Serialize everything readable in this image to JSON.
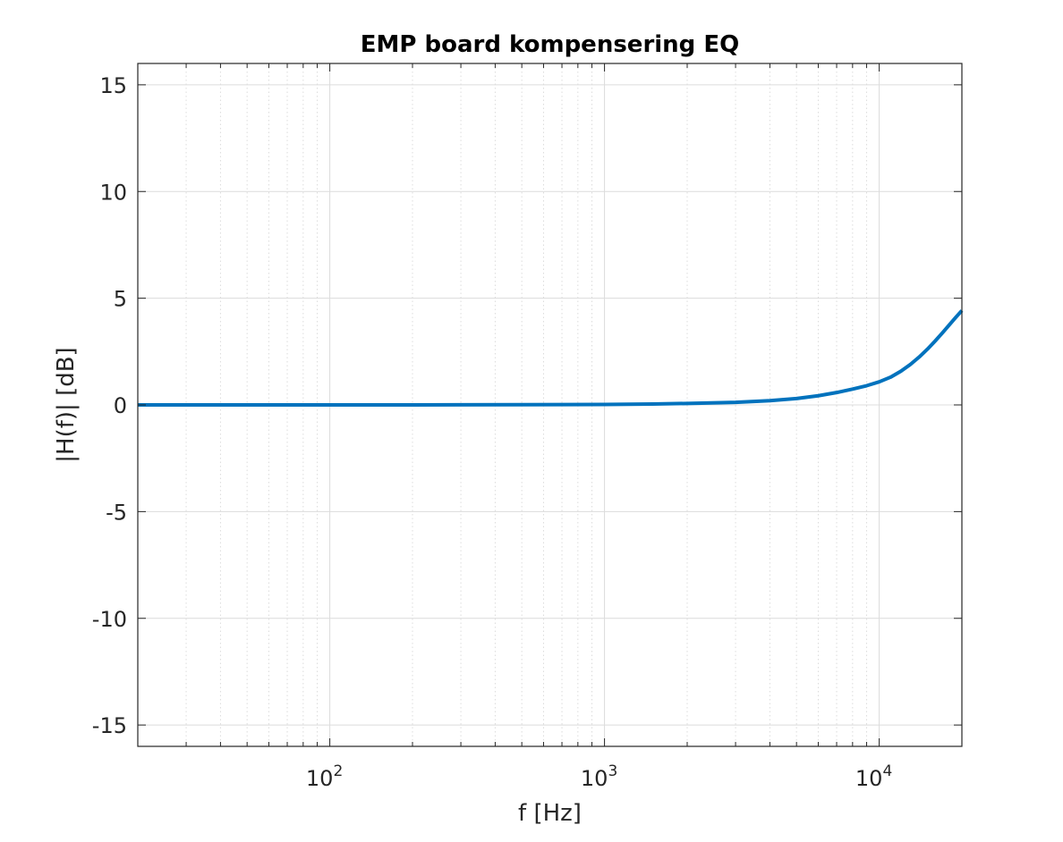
{
  "chart_data": {
    "type": "line",
    "title": "EMP board kompensering EQ",
    "xlabel": "f [Hz]",
    "ylabel": "|H(f)| [dB]",
    "xscale": "log",
    "xlim": [
      20,
      20000
    ],
    "ylim": [
      -16,
      16
    ],
    "grid": true,
    "minor_grid": true,
    "yticks": [
      -15,
      -10,
      -5,
      0,
      5,
      10,
      15
    ],
    "ytick_labels": [
      "-15",
      "-10",
      "-5",
      "0",
      "5",
      "10",
      "15"
    ],
    "xticks": [
      100,
      1000,
      10000
    ],
    "xtick_labels": [
      {
        "base": "10",
        "exp": "2"
      },
      {
        "base": "10",
        "exp": "3"
      },
      {
        "base": "10",
        "exp": "4"
      }
    ],
    "series": [
      {
        "color": "#0072bd",
        "x": [
          20,
          50,
          100,
          200,
          500,
          1000,
          1500,
          2000,
          3000,
          4000,
          5000,
          6000,
          7000,
          8000,
          9000,
          10000,
          11000,
          12000,
          13000,
          14000,
          15000,
          16000,
          17000,
          18000,
          19000,
          20000
        ],
        "y": [
          0,
          0,
          0,
          0,
          0.01,
          0.02,
          0.04,
          0.07,
          0.12,
          0.2,
          0.3,
          0.43,
          0.58,
          0.74,
          0.9,
          1.08,
          1.3,
          1.58,
          1.9,
          2.25,
          2.62,
          3.0,
          3.38,
          3.75,
          4.1,
          4.42
        ]
      }
    ],
    "colors": {
      "line": "#0072bd",
      "grid": "#dcdcdc",
      "axes": "#262626"
    }
  }
}
